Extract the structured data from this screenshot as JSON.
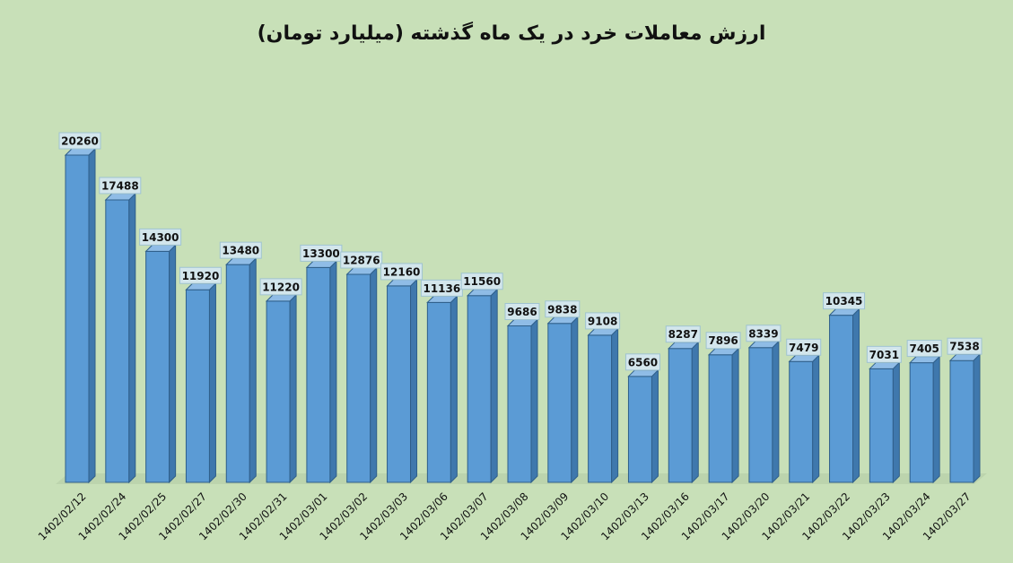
{
  "chart_data": {
    "type": "bar3d",
    "title": "ارزش معاملات خرد در یک ماه گذشته (میلیارد تومان)",
    "categories": [
      "1402/02/12",
      "1402/02/24",
      "1402/02/25",
      "1402/02/27",
      "1402/02/30",
      "1402/02/31",
      "1402/03/01",
      "1402/03/02",
      "1402/03/03",
      "1402/03/06",
      "1402/03/07",
      "1402/03/08",
      "1402/03/09",
      "1402/03/10",
      "1402/03/13",
      "1402/03/16",
      "1402/03/17",
      "1402/03/20",
      "1402/03/21",
      "1402/03/22",
      "1402/03/23",
      "1402/03/24",
      "1402/03/27"
    ],
    "values": [
      20260,
      17488,
      14300,
      11920,
      13480,
      11220,
      13300,
      12876,
      12160,
      11136,
      11560,
      9686,
      9838,
      9108,
      6560,
      8287,
      7896,
      8339,
      7479,
      10345,
      7031,
      7405,
      7538
    ],
    "color": "#5b9bd5"
  }
}
